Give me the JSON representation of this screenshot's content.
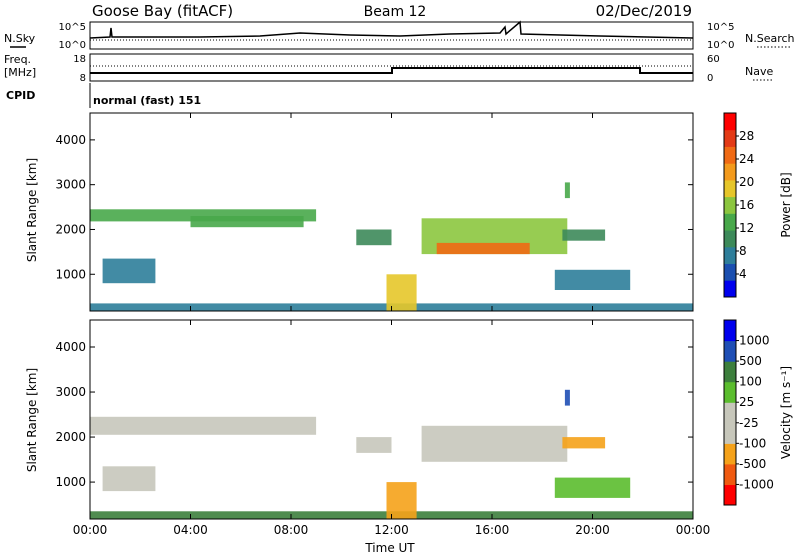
{
  "header": {
    "site": "Goose Bay (fitACF)",
    "beam": "Beam 12",
    "date": "02/Dec/2019"
  },
  "labels": {
    "nsky": "N.Sky",
    "nsearch": "N.Search",
    "freq": "Freq.",
    "freq_unit": "[MHz]",
    "nave": "Nave",
    "cpid": "CPID",
    "cpid_value": "normal (fast) 151",
    "ylabel": "Slant Range [km]",
    "xlabel": "Time UT"
  },
  "noise_panel": {
    "yticks_left": [
      "10^5",
      "10^0"
    ],
    "yticks_right": [
      "10^5",
      "10^0"
    ]
  },
  "freq_panel": {
    "yticks_left": [
      "18",
      "8"
    ],
    "yticks_right": [
      "60",
      "0"
    ]
  },
  "colors": {
    "power_scale": [
      "#0000ee",
      "#1b4fb0",
      "#2e7e9a",
      "#3d8a5a",
      "#48a84a",
      "#8cc63f",
      "#e6c62a",
      "#f39a1c",
      "#f06a14",
      "#e33a16",
      "#ff0000"
    ],
    "velocity_scale": [
      "#ff0000",
      "#f05a10",
      "#f5a21a",
      "#c7c7bb",
      "#c7c7bb",
      "#5bbd2e",
      "#3d7f3d",
      "#1f4fb5",
      "#0000ee"
    ]
  },
  "chart_data": [
    {
      "type": "heatmap",
      "panel": "power",
      "xlabel": "Time UT",
      "ylabel": "Slant Range [km]",
      "x_ticks": [
        "00:00",
        "04:00",
        "08:00",
        "12:00",
        "16:00",
        "20:00",
        "00:00"
      ],
      "xlim_hours": [
        0,
        24
      ],
      "y_ticks": [
        1000,
        2000,
        3000,
        4000
      ],
      "ylim": [
        180,
        4600
      ],
      "colorbar": {
        "label": "Power [dB]",
        "ticks": [
          4,
          8,
          12,
          16,
          20,
          24,
          28
        ],
        "range": [
          0,
          32
        ]
      },
      "regions": [
        {
          "t0": 0.0,
          "t1": 9.0,
          "r0": 2180,
          "r1": 2450,
          "value": 12
        },
        {
          "t0": 4.0,
          "t1": 8.5,
          "r0": 2050,
          "r1": 2300,
          "value": 13
        },
        {
          "t0": 0.5,
          "t1": 2.6,
          "r0": 800,
          "r1": 1350,
          "value": 8
        },
        {
          "t0": 0.0,
          "t1": 24.0,
          "r0": 180,
          "r1": 350,
          "value": 8
        },
        {
          "t0": 10.6,
          "t1": 12.0,
          "r0": 1650,
          "r1": 2000,
          "value": 10
        },
        {
          "t0": 13.2,
          "t1": 19.0,
          "r0": 1450,
          "r1": 2250,
          "value": 15
        },
        {
          "t0": 13.8,
          "t1": 17.5,
          "r0": 1450,
          "r1": 1700,
          "value": 26
        },
        {
          "t0": 18.8,
          "t1": 20.5,
          "r0": 1750,
          "r1": 2000,
          "value": 9
        },
        {
          "t0": 11.8,
          "t1": 13.0,
          "r0": 180,
          "r1": 1000,
          "value": 20
        },
        {
          "t0": 18.5,
          "t1": 21.5,
          "r0": 650,
          "r1": 1100,
          "value": 7
        },
        {
          "t0": 18.9,
          "t1": 19.1,
          "r0": 2700,
          "r1": 3050,
          "value": 13
        }
      ]
    },
    {
      "type": "heatmap",
      "panel": "velocity",
      "xlabel": "Time UT",
      "ylabel": "Slant Range [km]",
      "x_ticks": [
        "00:00",
        "04:00",
        "08:00",
        "12:00",
        "16:00",
        "20:00",
        "00:00"
      ],
      "xlim_hours": [
        0,
        24
      ],
      "y_ticks": [
        1000,
        2000,
        3000,
        4000
      ],
      "ylim": [
        180,
        4600
      ],
      "colorbar": {
        "label": "Velocity [m s⁻¹]",
        "ticks": [
          -1000,
          -500,
          -100,
          -25,
          25,
          100,
          500,
          1000
        ]
      },
      "regions": [
        {
          "t0": 0.0,
          "t1": 9.0,
          "r0": 2050,
          "r1": 2450,
          "value": 0
        },
        {
          "t0": 0.5,
          "t1": 2.6,
          "r0": 800,
          "r1": 1350,
          "value": 0
        },
        {
          "t0": 0.0,
          "t1": 24.0,
          "r0": 180,
          "r1": 350,
          "value": 120
        },
        {
          "t0": 10.6,
          "t1": 12.0,
          "r0": 1650,
          "r1": 2000,
          "value": 0
        },
        {
          "t0": 13.2,
          "t1": 19.0,
          "r0": 1450,
          "r1": 2250,
          "value": 0
        },
        {
          "t0": 18.8,
          "t1": 20.5,
          "r0": 1750,
          "r1": 2000,
          "value": -200
        },
        {
          "t0": 11.8,
          "t1": 13.0,
          "r0": 180,
          "r1": 1000,
          "value": -150
        },
        {
          "t0": 18.5,
          "t1": 21.5,
          "r0": 650,
          "r1": 1100,
          "value": 80
        },
        {
          "t0": 18.9,
          "t1": 19.1,
          "r0": 2700,
          "r1": 3050,
          "value": 600
        }
      ]
    }
  ]
}
